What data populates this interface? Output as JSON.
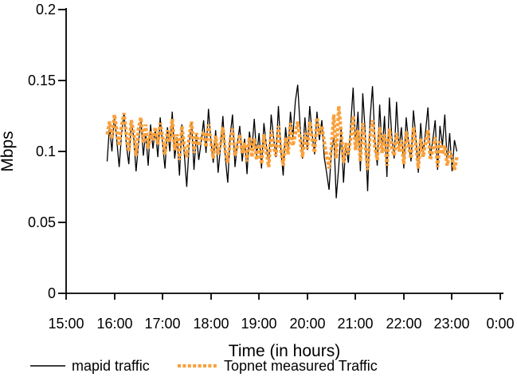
{
  "chart_data": {
    "type": "line",
    "title": "",
    "xlabel": "Time (in hours)",
    "ylabel": "Mbps",
    "xlim_hours": [
      15,
      24
    ],
    "ylim": [
      0,
      0.2
    ],
    "grid": false,
    "legend_position": "bottom",
    "x_tick_labels": [
      "15:00",
      "16:00",
      "17:00",
      "18:00",
      "19:00",
      "20:00",
      "21:00",
      "22:00",
      "23:00",
      "0:00"
    ],
    "y_tick_labels": [
      "0.2",
      "0.15",
      "0.1",
      "0.05",
      "0"
    ],
    "y_tick_values": [
      0.2,
      0.15,
      0.1,
      0.05,
      0
    ],
    "x_start_hour": 15.85,
    "x_step_hours": 0.05,
    "x_end_hour": 23.1,
    "n_points": 146,
    "series": [
      {
        "name": "mapid traffic",
        "color": "#000000",
        "style": "solid",
        "stroke_width": 1.3,
        "values": [
          0.093,
          0.118,
          0.1,
          0.125,
          0.108,
          0.089,
          0.112,
          0.127,
          0.104,
          0.091,
          0.121,
          0.11,
          0.086,
          0.105,
          0.123,
          0.097,
          0.113,
          0.09,
          0.119,
          0.102,
          0.116,
          0.096,
          0.124,
          0.105,
          0.088,
          0.117,
          0.1,
          0.128,
          0.095,
          0.11,
          0.083,
          0.119,
          0.098,
          0.075,
          0.104,
          0.121,
          0.087,
          0.112,
          0.094,
          0.107,
          0.122,
          0.099,
          0.13,
          0.108,
          0.092,
          0.115,
          0.085,
          0.103,
          0.125,
          0.096,
          0.078,
          0.111,
          0.126,
          0.089,
          0.106,
          0.118,
          0.093,
          0.109,
          0.084,
          0.114,
          0.101,
          0.123,
          0.097,
          0.113,
          0.088,
          0.12,
          0.105,
          0.091,
          0.126,
          0.11,
          0.096,
          0.132,
          0.102,
          0.083,
          0.117,
          0.099,
          0.128,
          0.11,
          0.135,
          0.147,
          0.118,
          0.095,
          0.124,
          0.101,
          0.132,
          0.112,
          0.098,
          0.128,
          0.108,
          0.122,
          0.096,
          0.085,
          0.073,
          0.101,
          0.11,
          0.067,
          0.089,
          0.116,
          0.078,
          0.105,
          0.092,
          0.119,
          0.145,
          0.104,
          0.128,
          0.086,
          0.141,
          0.113,
          0.072,
          0.122,
          0.146,
          0.108,
          0.09,
          0.133,
          0.1,
          0.125,
          0.082,
          0.138,
          0.111,
          0.095,
          0.135,
          0.102,
          0.117,
          0.088,
          0.124,
          0.106,
          0.093,
          0.129,
          0.11,
          0.085,
          0.12,
          0.098,
          0.114,
          0.131,
          0.096,
          0.108,
          0.122,
          0.087,
          0.118,
          0.104,
          0.126,
          0.092,
          0.113,
          0.086,
          0.108,
          0.1
        ]
      },
      {
        "name": "Topnet measured Traffic",
        "color": "#F9A13D",
        "style": "dashed",
        "stroke_width": 4.3,
        "values": [
          0.112,
          0.121,
          0.109,
          0.126,
          0.115,
          0.104,
          0.118,
          0.127,
          0.111,
          0.1,
          0.122,
          0.113,
          0.097,
          0.116,
          0.124,
          0.106,
          0.119,
          0.102,
          0.114,
          0.108,
          0.117,
          0.105,
          0.12,
          0.11,
          0.098,
          0.115,
          0.107,
          0.123,
          0.101,
          0.112,
          0.094,
          0.118,
          0.103,
          0.096,
          0.11,
          0.121,
          0.099,
          0.113,
          0.104,
          0.109,
          0.114,
          0.103,
          0.119,
          0.107,
          0.095,
          0.111,
          0.098,
          0.105,
          0.117,
          0.1,
          0.092,
          0.108,
          0.116,
          0.097,
          0.104,
          0.112,
          0.099,
          0.106,
          0.093,
          0.11,
          0.096,
          0.109,
          0.094,
          0.105,
          0.091,
          0.112,
          0.1,
          0.089,
          0.115,
          0.103,
          0.097,
          0.118,
          0.101,
          0.09,
          0.11,
          0.098,
          0.12,
          0.104,
          0.112,
          0.121,
          0.109,
          0.096,
          0.113,
          0.102,
          0.121,
          0.108,
          0.099,
          0.124,
          0.112,
          0.118,
          0.107,
          0.097,
          0.088,
          0.103,
          0.126,
          0.095,
          0.132,
          0.114,
          0.092,
          0.106,
          0.098,
          0.11,
          0.125,
          0.101,
          0.115,
          0.093,
          0.12,
          0.105,
          0.087,
          0.111,
          0.122,
          0.103,
          0.094,
          0.117,
          0.099,
          0.112,
          0.09,
          0.116,
          0.102,
          0.097,
          0.113,
          0.1,
          0.108,
          0.091,
          0.114,
          0.103,
          0.095,
          0.117,
          0.105,
          0.088,
          0.109,
          0.096,
          0.106,
          0.115,
          0.094,
          0.101,
          0.11,
          0.089,
          0.107,
          0.098,
          0.104,
          0.09,
          0.1,
          0.095,
          0.087,
          0.096
        ]
      }
    ]
  }
}
